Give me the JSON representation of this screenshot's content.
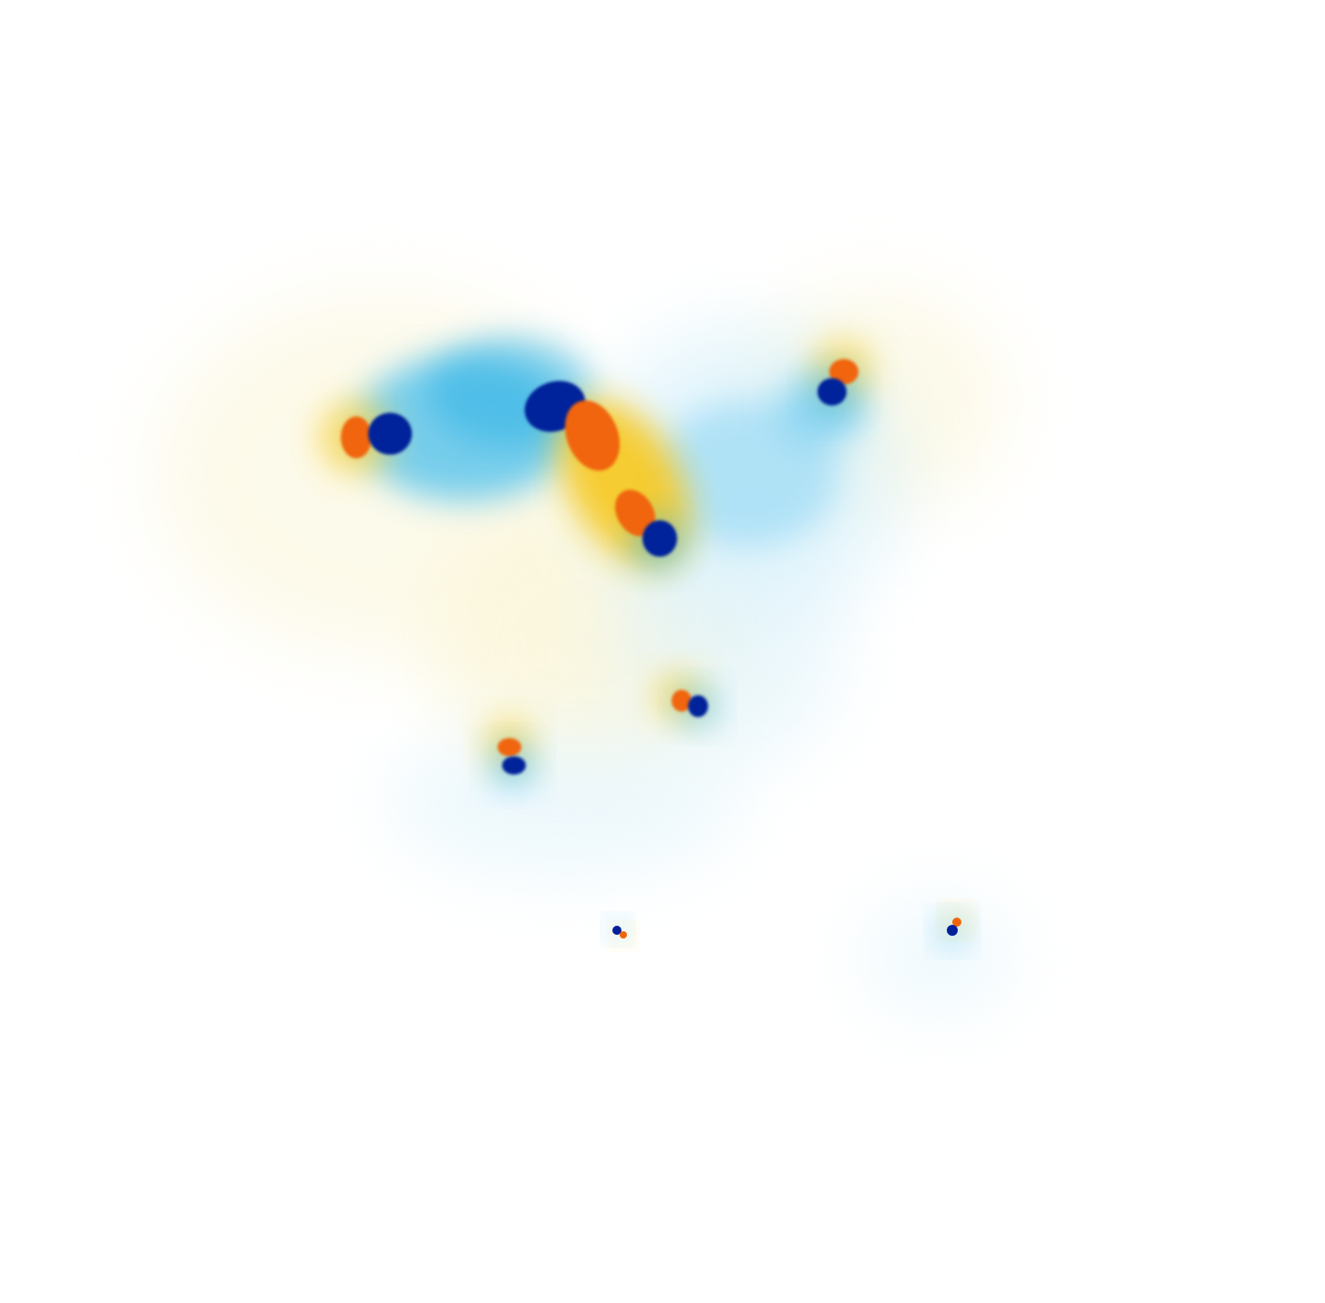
{
  "image": {
    "description_kind": "scientific-field-visualization",
    "palette": {
      "background": "#ffffff",
      "negative_strong": "#03209a",
      "negative_mid": "#1aa6e0",
      "negative_light": "#bfe8f8",
      "positive_strong": "#f0650a",
      "positive_mid": "#f7b500",
      "positive_light": "#fbf3c6"
    }
  }
}
